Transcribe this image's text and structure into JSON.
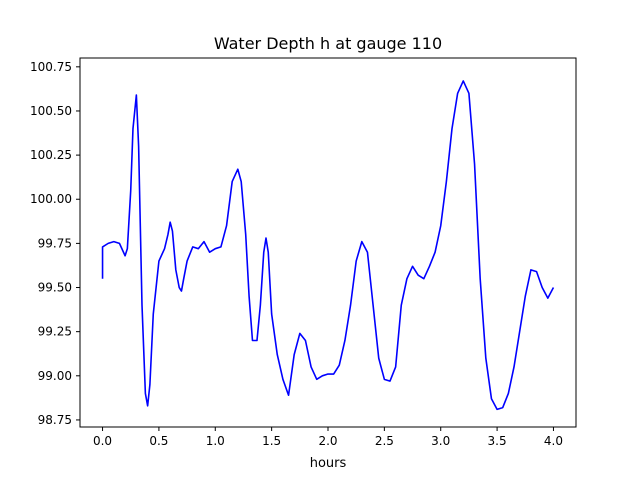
{
  "chart_data": {
    "type": "line",
    "title": "Water Depth h at gauge 110",
    "xlabel": "hours",
    "ylabel": "",
    "xlim": [
      -0.2,
      4.2
    ],
    "ylim": [
      98.71,
      100.8
    ],
    "xticks": [
      0.0,
      0.5,
      1.0,
      1.5,
      2.0,
      2.5,
      3.0,
      3.5,
      4.0
    ],
    "xtick_labels": [
      "0.0",
      "0.5",
      "1.0",
      "1.5",
      "2.0",
      "2.5",
      "3.0",
      "3.5",
      "4.0"
    ],
    "yticks": [
      98.75,
      99.0,
      99.25,
      99.5,
      99.75,
      100.0,
      100.25,
      100.5,
      100.75
    ],
    "ytick_labels": [
      "98.75",
      "99.00",
      "99.25",
      "99.50",
      "99.75",
      "100.00",
      "100.25",
      "100.50",
      "100.75"
    ],
    "grid": false,
    "line_color": "#0000ff",
    "series": [
      {
        "x": [
          0.0,
          0.0,
          0.05,
          0.1,
          0.15,
          0.2,
          0.22,
          0.25,
          0.27,
          0.3,
          0.32,
          0.35,
          0.38,
          0.4,
          0.42,
          0.45,
          0.5,
          0.55,
          0.58,
          0.6,
          0.62,
          0.65,
          0.68,
          0.7,
          0.72,
          0.75,
          0.8,
          0.85,
          0.9,
          0.95,
          1.0,
          1.05,
          1.1,
          1.15,
          1.2,
          1.23,
          1.27,
          1.3,
          1.33,
          1.37,
          1.4,
          1.43,
          1.45,
          1.47,
          1.5,
          1.55,
          1.6,
          1.65,
          1.7,
          1.75,
          1.8,
          1.85,
          1.9,
          1.95,
          2.0,
          2.05,
          2.1,
          2.15,
          2.2,
          2.25,
          2.3,
          2.35,
          2.4,
          2.45,
          2.5,
          2.55,
          2.6,
          2.65,
          2.7,
          2.75,
          2.8,
          2.85,
          2.9,
          2.95,
          3.0,
          3.05,
          3.1,
          3.15,
          3.2,
          3.25,
          3.3,
          3.35,
          3.4,
          3.45,
          3.5,
          3.55,
          3.6,
          3.65,
          3.7,
          3.75,
          3.8,
          3.85,
          3.9,
          3.95,
          4.0
        ],
        "y": [
          99.55,
          99.73,
          99.75,
          99.76,
          99.75,
          99.68,
          99.72,
          100.05,
          100.4,
          100.59,
          100.3,
          99.4,
          98.9,
          98.83,
          98.95,
          99.35,
          99.65,
          99.72,
          99.8,
          99.87,
          99.82,
          99.6,
          99.5,
          99.48,
          99.55,
          99.65,
          99.73,
          99.72,
          99.76,
          99.7,
          99.72,
          99.73,
          99.85,
          100.1,
          100.17,
          100.1,
          99.8,
          99.45,
          99.2,
          99.2,
          99.4,
          99.7,
          99.78,
          99.7,
          99.35,
          99.12,
          98.98,
          98.89,
          99.12,
          99.24,
          99.2,
          99.05,
          98.98,
          99.0,
          99.01,
          99.01,
          99.06,
          99.2,
          99.4,
          99.65,
          99.76,
          99.7,
          99.4,
          99.1,
          98.98,
          98.97,
          99.05,
          99.4,
          99.55,
          99.62,
          99.57,
          99.55,
          99.62,
          99.7,
          99.85,
          100.1,
          100.4,
          100.6,
          100.67,
          100.6,
          100.2,
          99.55,
          99.1,
          98.87,
          98.81,
          98.82,
          98.9,
          99.05,
          99.25,
          99.45,
          99.6,
          99.59,
          99.5,
          99.44,
          99.5
        ]
      }
    ]
  }
}
